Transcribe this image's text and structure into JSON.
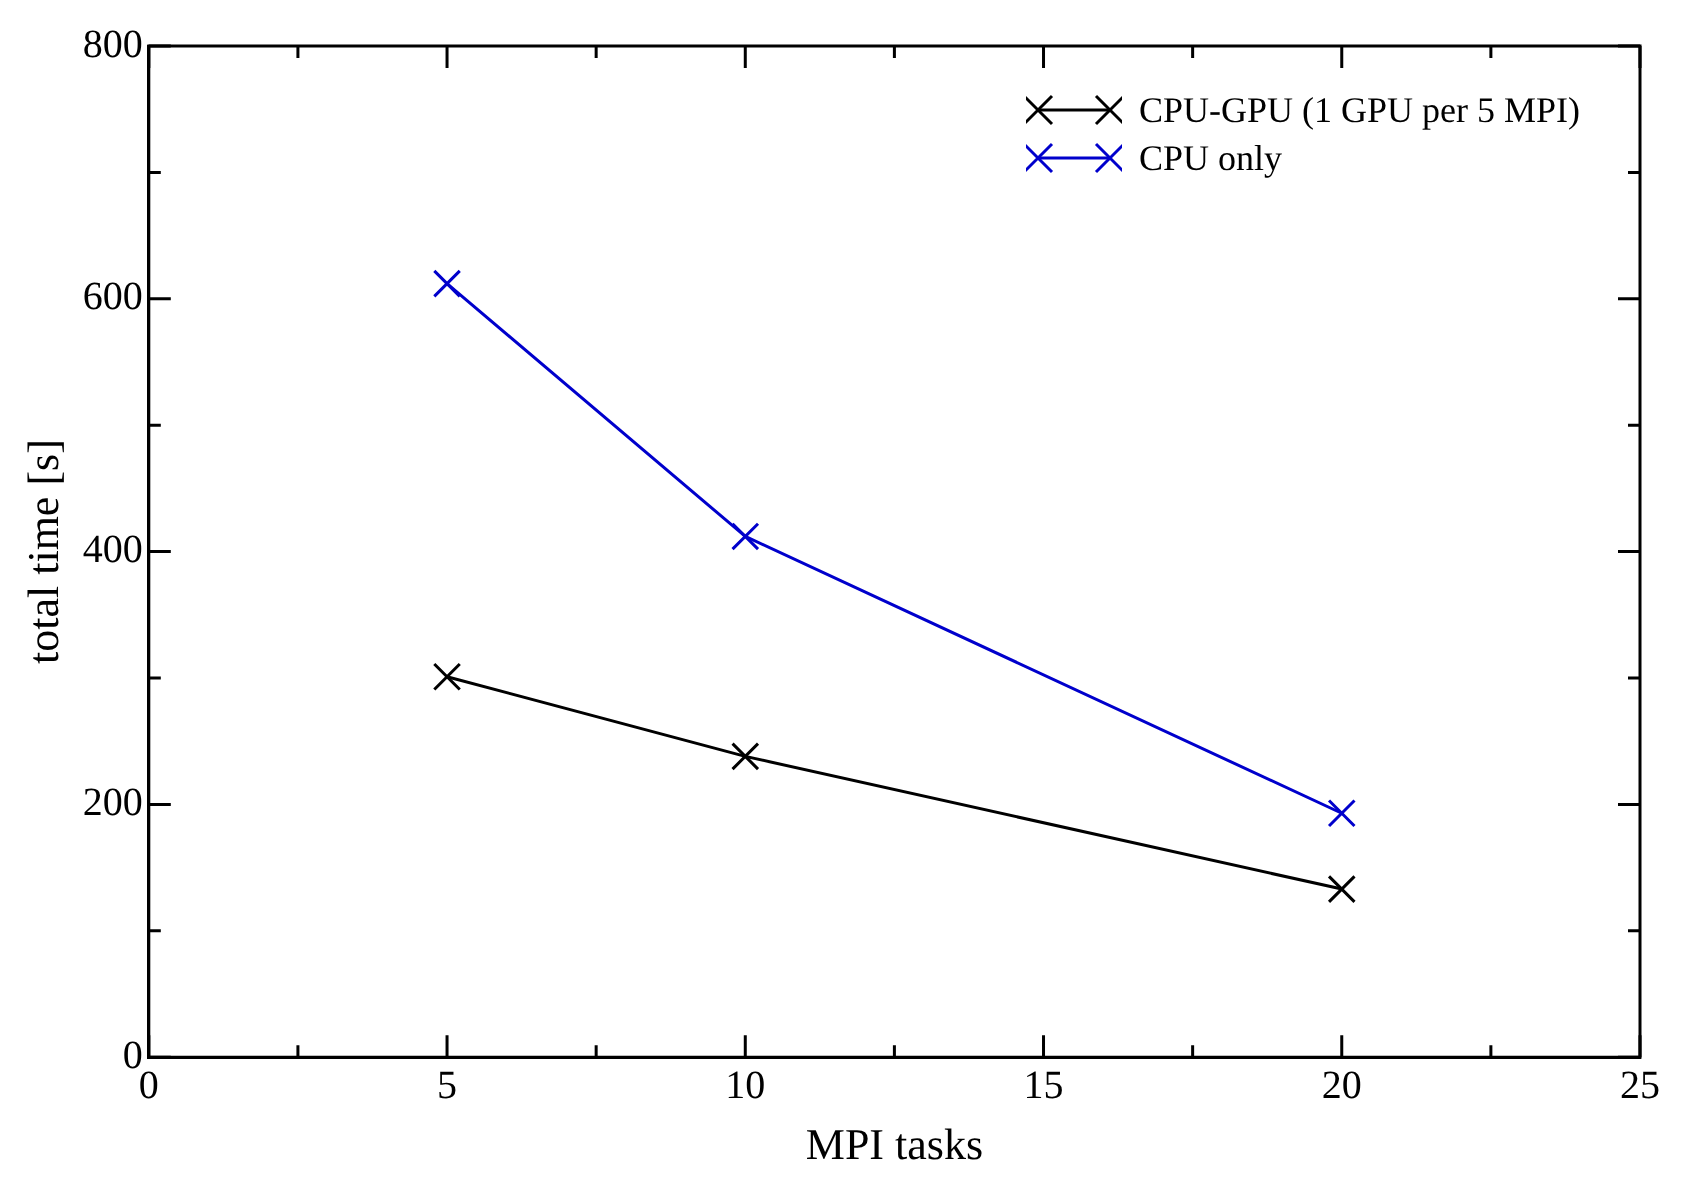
{
  "chart_data": {
    "type": "line",
    "xlabel": "MPI tasks",
    "ylabel": "total time [s]",
    "x": [
      5,
      10,
      20
    ],
    "series": [
      {
        "name": "CPU-GPU (1 GPU per 5 MPI)",
        "color": "#000000",
        "values": [
          301,
          238,
          133
        ]
      },
      {
        "name": "CPU only",
        "color": "#0000cc",
        "values": [
          612,
          412,
          193
        ]
      }
    ],
    "xlim": [
      0,
      25
    ],
    "xticks": [
      0,
      {
        "value": 2.5,
        "label": null
      },
      5,
      {
        "value": 7.5,
        "label": null
      },
      10,
      {
        "value": 12.5,
        "label": null
      },
      15,
      {
        "value": 17.5,
        "label": null
      },
      20,
      {
        "value": 22.5,
        "label": null
      },
      25
    ],
    "ylim": [
      0,
      800
    ],
    "yticks": [
      0,
      {
        "value": 100,
        "label": null
      },
      200,
      {
        "value": 300,
        "label": null
      },
      400,
      {
        "value": 500,
        "label": null
      },
      600,
      {
        "value": 700,
        "label": null
      },
      800
    ],
    "grid": false,
    "legend": "top right",
    "marker": "cross",
    "line_style": "solid"
  }
}
